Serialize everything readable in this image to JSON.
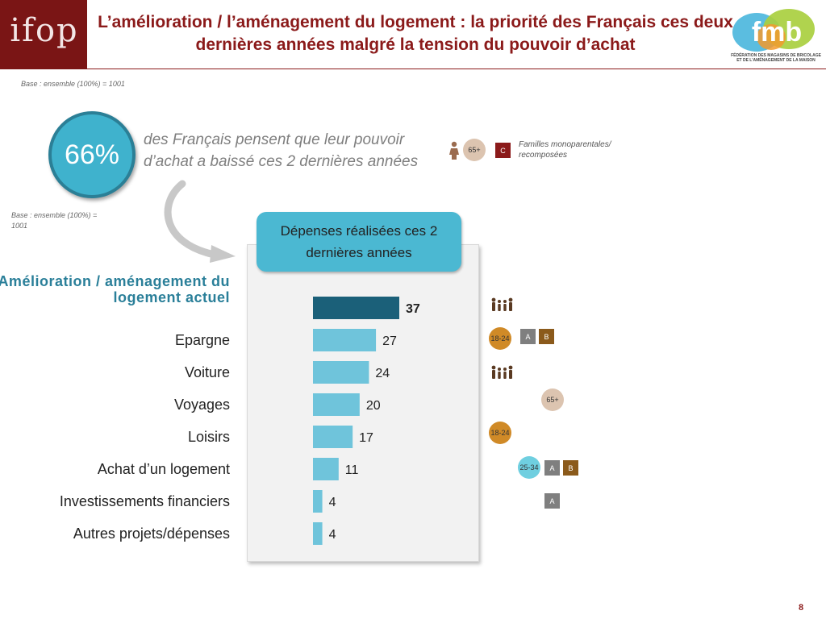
{
  "header": {
    "logo": "ifop",
    "title": "L’amélioration / l’aménagement du logement : la priorité des Français ces deux dernières années malgré la tension du pouvoir d’achat",
    "partner_logo": "fmb",
    "partner_sub": "FÉDÉRATION DES MAGASINS DE BRICOLAGE ET DE L’AMÉNAGEMENT DE LA MAISON"
  },
  "base_top": "Base : ensemble (100%) = 1001",
  "base_left": "Base : ensemble (100%) = 1001",
  "callout": {
    "value": "66%",
    "text": "des Français pensent que leur pouvoir d’achat a baissé ces 2 dernières années",
    "badge_age": "65+",
    "badge_code": "C",
    "families_text": "Familles monoparentales/ recomposées"
  },
  "panel_title": "Dépenses réalisées ces 2 dernières années",
  "chart_data": {
    "type": "bar",
    "orientation": "horizontal",
    "categories": [
      "Amélioration / aménagement du logement actuel",
      "Epargne",
      "Voiture",
      "Voyages",
      "Loisirs",
      "Achat d’un logement",
      "Investissements financiers",
      "Autres projets/dépenses"
    ],
    "values": [
      37,
      27,
      24,
      20,
      17,
      11,
      4,
      4
    ],
    "xlim": [
      0,
      40
    ],
    "highlight_index": 0,
    "colors": {
      "highlight": "#1b6079",
      "bar": "#6fc4db"
    }
  },
  "side_badges": [
    {
      "icon": "family-icon"
    },
    {
      "age": "18-24",
      "codes": [
        "A",
        "B"
      ]
    },
    {
      "icon": "family-icon"
    },
    {
      "age": "65+"
    },
    {
      "age": "18-24"
    },
    {
      "age": "25-34",
      "codes": [
        "A",
        "B"
      ]
    },
    {
      "codes": [
        "A"
      ]
    },
    {}
  ],
  "page_number": "8",
  "colors": {
    "brand": "#8b1a1a",
    "accent": "#3fb2cd",
    "age_young": "#d08a27",
    "age_mid": "#6fcfe0",
    "age_senior": "#dcc4b0"
  }
}
